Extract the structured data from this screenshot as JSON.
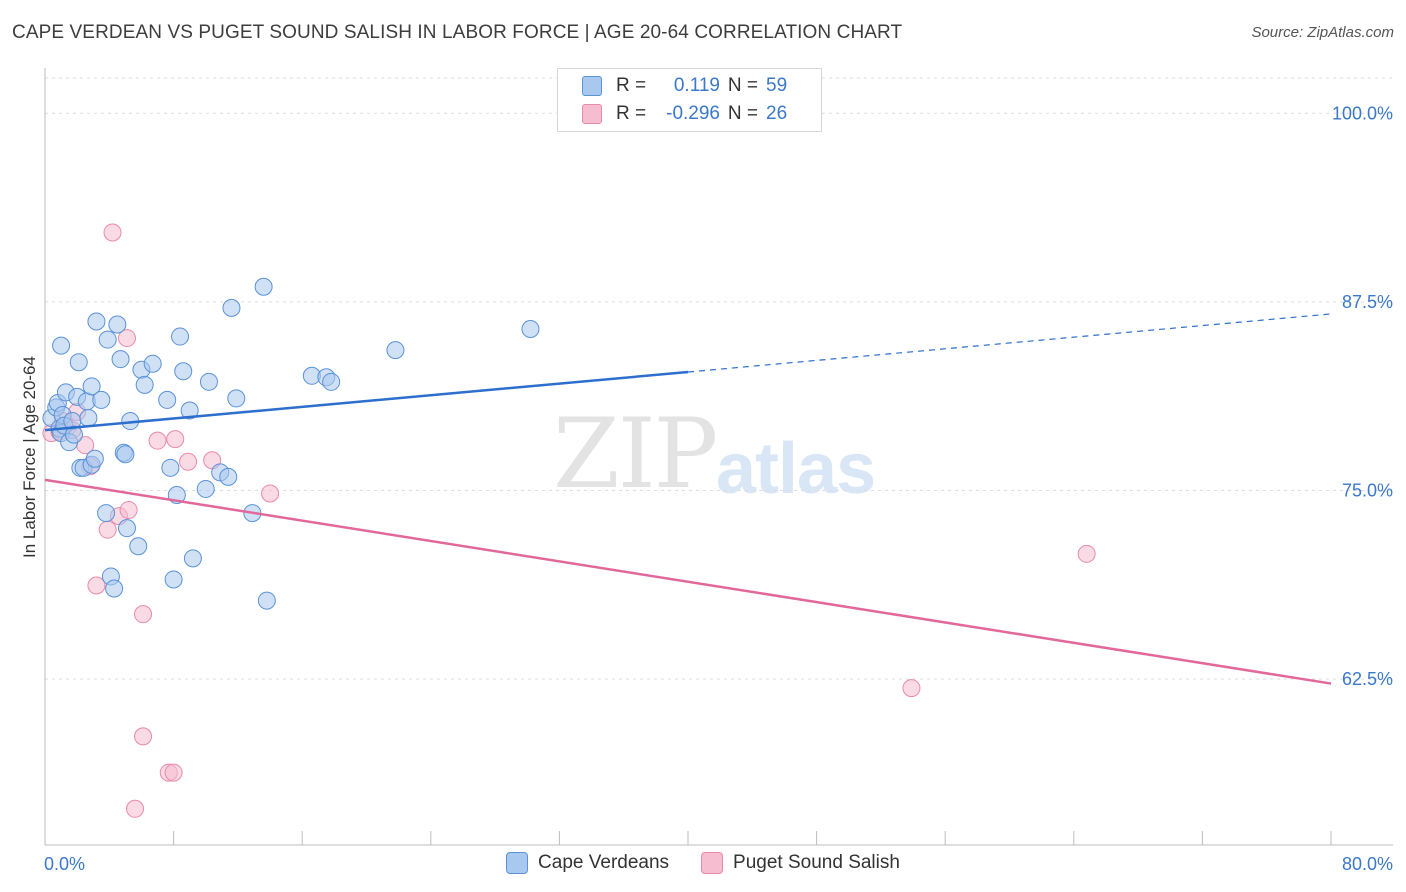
{
  "title": "CAPE VERDEAN VS PUGET SOUND SALISH IN LABOR FORCE | AGE 20-64 CORRELATION CHART",
  "source": "Source: ZipAtlas.com",
  "watermark": {
    "zip": "ZIP",
    "atlas": "atlas"
  },
  "legend": {
    "rows": [
      {
        "r_label": "R =",
        "r_value": "0.119",
        "n_label": "N =",
        "n_value": "59"
      },
      {
        "r_label": "R =",
        "r_value": "-0.296",
        "n_label": "N =",
        "n_value": "26"
      }
    ]
  },
  "colors": {
    "blue_fill": "#a9c8ef",
    "blue_stroke": "#5a92d8",
    "blue_line": "#2c6fcd",
    "pink_fill": "#f6bcd0",
    "pink_stroke": "#e98aab",
    "pink_line": "#e2689b",
    "axis_label": "#3b78c9"
  },
  "chart_data": {
    "type": "scatter",
    "title": "CAPE VERDEAN VS PUGET SOUND SALISH IN LABOR FORCE | AGE 20-64 CORRELATION CHART",
    "xlabel": "",
    "ylabel": "In Labor Force | Age 20-64",
    "xlim": [
      0,
      80
    ],
    "ylim": [
      51.5,
      103
    ],
    "x_tick_labels": [
      "0.0%",
      "80.0%"
    ],
    "y_ticks": [
      62.5,
      75.0,
      87.5,
      100.0
    ],
    "y_tick_labels": [
      "62.5%",
      "75.0%",
      "87.5%",
      "100.0%"
    ],
    "grid": true,
    "legend_position": "top-center",
    "series": [
      {
        "name": "Cape Verdeans",
        "r": 0.119,
        "n": 59,
        "trend": {
          "x_solid": [
            0,
            40
          ],
          "x_dashed": [
            40,
            80
          ],
          "y_at_x0": 79.0,
          "y_at_x80": 86.7
        },
        "points": [
          [
            0.4,
            79.8
          ],
          [
            0.7,
            80.5
          ],
          [
            0.8,
            80.8
          ],
          [
            0.9,
            79.1
          ],
          [
            1.0,
            78.8
          ],
          [
            1.0,
            84.6
          ],
          [
            1.1,
            80.0
          ],
          [
            1.2,
            79.3
          ],
          [
            1.3,
            81.5
          ],
          [
            1.5,
            78.2
          ],
          [
            1.7,
            79.6
          ],
          [
            1.8,
            78.7
          ],
          [
            2.0,
            81.2
          ],
          [
            2.1,
            83.5
          ],
          [
            2.2,
            76.5
          ],
          [
            2.4,
            76.5
          ],
          [
            2.6,
            80.9
          ],
          [
            2.7,
            79.8
          ],
          [
            2.9,
            76.7
          ],
          [
            2.9,
            81.9
          ],
          [
            3.1,
            77.1
          ],
          [
            3.2,
            86.2
          ],
          [
            3.5,
            81.0
          ],
          [
            3.8,
            73.5
          ],
          [
            3.9,
            85.0
          ],
          [
            4.1,
            69.3
          ],
          [
            4.3,
            68.5
          ],
          [
            4.5,
            86.0
          ],
          [
            4.7,
            83.7
          ],
          [
            4.9,
            77.5
          ],
          [
            5.0,
            77.4
          ],
          [
            5.1,
            72.5
          ],
          [
            5.3,
            79.6
          ],
          [
            5.8,
            71.3
          ],
          [
            6.0,
            83.0
          ],
          [
            6.2,
            82.0
          ],
          [
            6.7,
            83.4
          ],
          [
            7.6,
            81.0
          ],
          [
            7.8,
            76.5
          ],
          [
            8.0,
            69.1
          ],
          [
            8.2,
            74.7
          ],
          [
            8.4,
            85.2
          ],
          [
            8.6,
            82.9
          ],
          [
            9.0,
            80.3
          ],
          [
            9.2,
            70.5
          ],
          [
            10.0,
            75.1
          ],
          [
            10.2,
            82.2
          ],
          [
            10.9,
            76.2
          ],
          [
            11.4,
            75.9
          ],
          [
            11.6,
            87.1
          ],
          [
            11.9,
            81.1
          ],
          [
            12.9,
            73.5
          ],
          [
            13.6,
            88.5
          ],
          [
            13.8,
            67.7
          ],
          [
            16.6,
            82.6
          ],
          [
            17.5,
            82.5
          ],
          [
            17.8,
            82.2
          ],
          [
            21.8,
            84.3
          ],
          [
            30.2,
            85.7
          ]
        ]
      },
      {
        "name": "Puget Sound Salish",
        "r": -0.296,
        "n": 26,
        "trend": {
          "x": [
            0,
            80
          ],
          "y_at_x0": 75.7,
          "y_at_x80": 62.2
        },
        "points": [
          [
            0.4,
            78.8
          ],
          [
            1.1,
            79.6
          ],
          [
            1.4,
            79.2
          ],
          [
            1.7,
            79.0
          ],
          [
            2.0,
            80.2
          ],
          [
            2.5,
            78.0
          ],
          [
            2.8,
            76.6
          ],
          [
            3.2,
            68.7
          ],
          [
            3.9,
            72.4
          ],
          [
            4.2,
            92.1
          ],
          [
            4.6,
            73.3
          ],
          [
            5.1,
            85.1
          ],
          [
            5.2,
            73.7
          ],
          [
            6.1,
            66.8
          ],
          [
            6.1,
            58.7
          ],
          [
            7.0,
            78.3
          ],
          [
            7.7,
            56.3
          ],
          [
            8.1,
            78.4
          ],
          [
            8.9,
            76.9
          ],
          [
            10.4,
            77.0
          ],
          [
            14.0,
            74.8
          ],
          [
            8.0,
            56.3
          ],
          [
            5.6,
            53.9
          ],
          [
            64.8,
            70.8
          ],
          [
            53.9,
            61.9
          ],
          [
            0.9,
            78.9
          ]
        ]
      }
    ]
  }
}
